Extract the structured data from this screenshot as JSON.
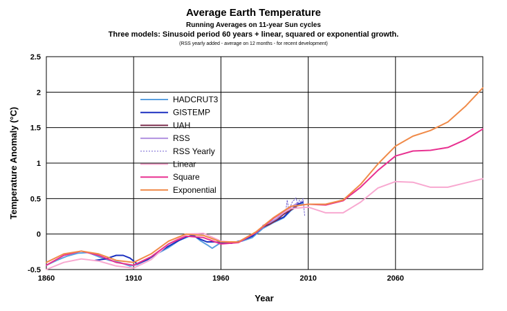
{
  "chart_data": {
    "type": "line",
    "title": "Average Earth Temperature",
    "subtitle": "Running Averages on 11-year Sun cycles",
    "subtitle2": "Three models: Sinusoid period 60 years + linear, squared or exponential growth.",
    "note": "(RSS yearly added - average on 12 months - for recent development)",
    "xlabel": "Year",
    "ylabel": "Temperature Anomaly (°C)",
    "xlim": [
      1860,
      2110
    ],
    "ylim": [
      -0.5,
      2.5
    ],
    "xticks": [
      1860,
      1910,
      1960,
      2010,
      2060
    ],
    "xtick_labels": [
      "1860",
      "1910",
      "1960",
      "2010",
      "2060"
    ],
    "yticks": [
      -0.5,
      0,
      0.5,
      1,
      1.5,
      2,
      2.5
    ],
    "ytick_labels": [
      "-0.5",
      "0",
      "0.5",
      "1",
      "1.5",
      "2",
      "2.5"
    ],
    "grid": true,
    "legend_position": "center-left",
    "series": [
      {
        "name": "HADCRUT3",
        "color": "#5aa0e0",
        "style": "solid",
        "width": 2,
        "x": [
          1860,
          1866,
          1872,
          1878,
          1884,
          1890,
          1896,
          1902,
          1908,
          1912,
          1918,
          1924,
          1930,
          1936,
          1940,
          1944,
          1948,
          1952,
          1955,
          1960,
          1966,
          1972,
          1978,
          1984,
          1990,
          1996,
          2000,
          2004,
          2007
        ],
        "y": [
          -0.44,
          -0.37,
          -0.31,
          -0.27,
          -0.26,
          -0.32,
          -0.37,
          -0.4,
          -0.45,
          -0.43,
          -0.36,
          -0.27,
          -0.19,
          -0.09,
          -0.05,
          -0.01,
          -0.09,
          -0.15,
          -0.2,
          -0.12,
          -0.12,
          -0.1,
          -0.05,
          0.08,
          0.16,
          0.23,
          0.33,
          0.4,
          0.43
        ]
      },
      {
        "name": "GISTEMP",
        "color": "#1a2fbf",
        "style": "solid",
        "width": 2,
        "x": [
          1888,
          1894,
          1900,
          1904,
          1908,
          1912,
          1918,
          1924,
          1930,
          1936,
          1940,
          1944,
          1948,
          1952,
          1956,
          1960,
          1966,
          1972,
          1978,
          1984,
          1990,
          1996,
          2000,
          2004,
          2007
        ],
        "y": [
          -0.37,
          -0.35,
          -0.3,
          -0.3,
          -0.34,
          -0.42,
          -0.36,
          -0.26,
          -0.17,
          -0.09,
          -0.04,
          -0.02,
          -0.07,
          -0.11,
          -0.11,
          -0.12,
          -0.13,
          -0.09,
          -0.03,
          0.1,
          0.17,
          0.24,
          0.34,
          0.42,
          0.45
        ]
      },
      {
        "name": "UAH",
        "color": "#7a2a4a",
        "style": "solid",
        "width": 2,
        "x": [
          1984,
          1988,
          1992,
          1996,
          2000,
          2003
        ],
        "y": [
          0.1,
          0.14,
          0.2,
          0.28,
          0.34,
          0.38
        ]
      },
      {
        "name": "RSS",
        "color": "#b090e0",
        "style": "solid",
        "width": 2,
        "x": [
          1984,
          1988,
          1992,
          1996,
          2000,
          2004
        ],
        "y": [
          0.12,
          0.16,
          0.22,
          0.3,
          0.38,
          0.44
        ]
      },
      {
        "name": "RSS Yearly",
        "color": "#7060d0",
        "style": "dotted",
        "width": 1,
        "x": [
          1997,
          1998,
          1999,
          2000,
          2001,
          2002,
          2003,
          2004,
          2005,
          2006,
          2007,
          2008
        ],
        "y": [
          0.3,
          0.48,
          0.32,
          0.4,
          0.46,
          0.48,
          0.51,
          0.42,
          0.48,
          0.44,
          0.5,
          0.25
        ]
      },
      {
        "name": "Linear",
        "color": "#f8a8d0",
        "style": "solid",
        "width": 2,
        "x": [
          1860,
          1870,
          1880,
          1890,
          1900,
          1910,
          1920,
          1930,
          1940,
          1950,
          1960,
          1970,
          1980,
          1990,
          2000,
          2010,
          2020,
          2030,
          2040,
          2050,
          2060,
          2070,
          2080,
          2090,
          2100,
          2110
        ],
        "y": [
          -0.5,
          -0.4,
          -0.35,
          -0.38,
          -0.45,
          -0.48,
          -0.36,
          -0.14,
          0.0,
          0.01,
          -0.1,
          -0.12,
          0.02,
          0.22,
          0.36,
          0.38,
          0.3,
          0.3,
          0.45,
          0.65,
          0.74,
          0.73,
          0.66,
          0.66,
          0.72,
          0.78
        ]
      },
      {
        "name": "Square",
        "color": "#e83090",
        "style": "solid",
        "width": 2,
        "x": [
          1860,
          1870,
          1880,
          1890,
          1900,
          1910,
          1920,
          1930,
          1940,
          1950,
          1960,
          1970,
          1980,
          1990,
          2000,
          2010,
          2020,
          2030,
          2040,
          2050,
          2060,
          2070,
          2080,
          2090,
          2100,
          2110
        ],
        "y": [
          -0.44,
          -0.3,
          -0.24,
          -0.3,
          -0.4,
          -0.44,
          -0.32,
          -0.14,
          -0.03,
          -0.05,
          -0.14,
          -0.12,
          0.02,
          0.22,
          0.39,
          0.42,
          0.41,
          0.47,
          0.66,
          0.9,
          1.1,
          1.17,
          1.18,
          1.22,
          1.33,
          1.48
        ]
      },
      {
        "name": "Exponential",
        "color": "#f08a48",
        "style": "solid",
        "width": 2,
        "x": [
          1860,
          1870,
          1880,
          1890,
          1900,
          1910,
          1920,
          1930,
          1940,
          1950,
          1960,
          1970,
          1980,
          1990,
          2000,
          2010,
          2020,
          2030,
          2040,
          2050,
          2060,
          2070,
          2080,
          2090,
          2100,
          2110
        ],
        "y": [
          -0.4,
          -0.28,
          -0.24,
          -0.28,
          -0.37,
          -0.4,
          -0.28,
          -0.1,
          0.0,
          -0.02,
          -0.11,
          -0.11,
          0.03,
          0.23,
          0.39,
          0.42,
          0.42,
          0.48,
          0.7,
          0.99,
          1.24,
          1.38,
          1.46,
          1.58,
          1.8,
          2.06
        ]
      }
    ]
  }
}
